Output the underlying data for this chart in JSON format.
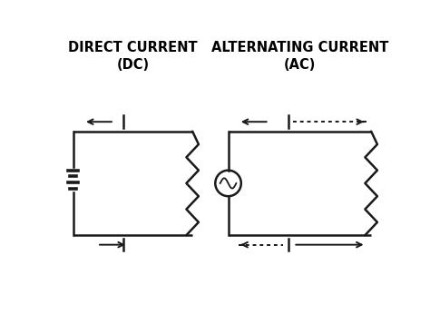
{
  "bg_color": "#ffffff",
  "line_color": "#1a1a1a",
  "lw": 1.8,
  "title_dc": "DIRECT CURRENT\n(DC)",
  "title_ac": "ALTERNATING CURRENT\n(AC)",
  "title_fontsize": 10.5,
  "title_fontweight": "black",
  "dc_l": 0.55,
  "dc_r": 4.05,
  "dc_b": 1.3,
  "dc_t": 4.35,
  "ac_l": 5.1,
  "ac_r": 9.3,
  "ac_b": 1.3,
  "ac_t": 4.35,
  "res_amp": 0.18,
  "num_zigs": 8
}
